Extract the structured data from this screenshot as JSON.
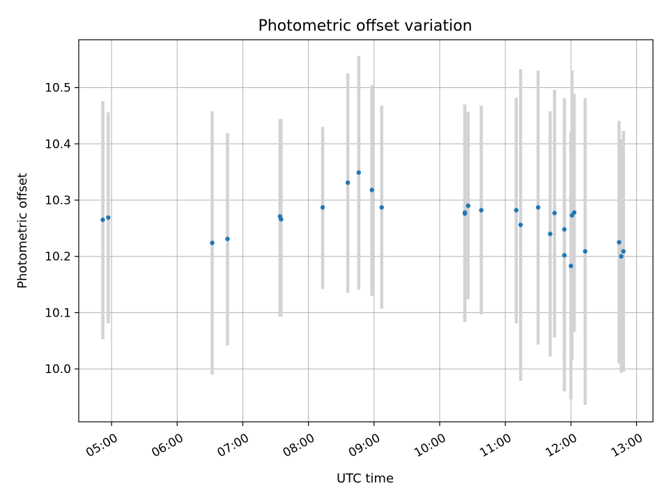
{
  "chart_data": {
    "type": "scatter",
    "title": "Photometric offset variation",
    "xlabel": "UTC time",
    "ylabel": "Photometric offset",
    "x_tick_labels": [
      "05:00",
      "06:00",
      "07:00",
      "08:00",
      "09:00",
      "10:00",
      "11:00",
      "12:00",
      "13:00"
    ],
    "y_tick_labels": [
      "10.0",
      "10.1",
      "10.2",
      "10.3",
      "10.4",
      "10.5"
    ],
    "x_ticks": [
      "05:00",
      "06:00",
      "07:00",
      "08:00",
      "09:00",
      "10:00",
      "11:00",
      "12:00",
      "13:00"
    ],
    "y_ticks": [
      10.0,
      10.1,
      10.2,
      10.3,
      10.4,
      10.5
    ],
    "xlim": [
      "04:30",
      "13:15"
    ],
    "ylim": [
      9.906,
      10.585
    ],
    "grid": true,
    "colors": {
      "point": "#1f77b4",
      "errorbar": "#d3d3d3",
      "grid": "#b0b0b0"
    },
    "points": [
      {
        "x": "04:52",
        "y": 10.265,
        "ylow": 10.053,
        "yhigh": 10.476
      },
      {
        "x": "04:57",
        "y": 10.269,
        "ylow": 10.081,
        "yhigh": 10.456
      },
      {
        "x": "06:32",
        "y": 10.224,
        "ylow": 9.99,
        "yhigh": 10.458
      },
      {
        "x": "06:46",
        "y": 10.231,
        "ylow": 10.042,
        "yhigh": 10.419
      },
      {
        "x": "07:34",
        "y": 10.271,
        "ylow": 10.093,
        "yhigh": 10.444
      },
      {
        "x": "07:35",
        "y": 10.266,
        "ylow": 10.093,
        "yhigh": 10.444
      },
      {
        "x": "08:13",
        "y": 10.287,
        "ylow": 10.142,
        "yhigh": 10.43
      },
      {
        "x": "08:36",
        "y": 10.331,
        "ylow": 10.135,
        "yhigh": 10.525
      },
      {
        "x": "08:46",
        "y": 10.349,
        "ylow": 10.141,
        "yhigh": 10.556
      },
      {
        "x": "08:58",
        "y": 10.318,
        "ylow": 10.13,
        "yhigh": 10.504
      },
      {
        "x": "09:07",
        "y": 10.287,
        "ylow": 10.107,
        "yhigh": 10.468
      },
      {
        "x": "10:23",
        "y": 10.276,
        "ylow": 10.083,
        "yhigh": 10.47
      },
      {
        "x": "10:23",
        "y": 10.278,
        "ylow": 10.083,
        "yhigh": 10.47
      },
      {
        "x": "10:26",
        "y": 10.29,
        "ylow": 10.124,
        "yhigh": 10.457
      },
      {
        "x": "10:38",
        "y": 10.282,
        "ylow": 10.097,
        "yhigh": 10.468
      },
      {
        "x": "11:10",
        "y": 10.282,
        "ylow": 10.081,
        "yhigh": 10.482
      },
      {
        "x": "11:14",
        "y": 10.256,
        "ylow": 9.979,
        "yhigh": 10.533
      },
      {
        "x": "11:30",
        "y": 10.287,
        "ylow": 10.043,
        "yhigh": 10.53
      },
      {
        "x": "11:41",
        "y": 10.24,
        "ylow": 10.022,
        "yhigh": 10.458
      },
      {
        "x": "11:45",
        "y": 10.277,
        "ylow": 10.056,
        "yhigh": 10.496
      },
      {
        "x": "11:54",
        "y": 10.248,
        "ylow": 10.016,
        "yhigh": 10.481
      },
      {
        "x": "11:54",
        "y": 10.202,
        "ylow": 9.96,
        "yhigh": 10.445
      },
      {
        "x": "12:00",
        "y": 10.183,
        "ylow": 9.946,
        "yhigh": 10.421
      },
      {
        "x": "12:01",
        "y": 10.273,
        "ylow": 10.016,
        "yhigh": 10.531
      },
      {
        "x": "12:03",
        "y": 10.278,
        "ylow": 10.066,
        "yhigh": 10.489
      },
      {
        "x": "12:13",
        "y": 10.209,
        "ylow": 9.936,
        "yhigh": 10.481
      },
      {
        "x": "12:44",
        "y": 10.225,
        "ylow": 10.01,
        "yhigh": 10.441
      },
      {
        "x": "12:46",
        "y": 10.2,
        "ylow": 9.993,
        "yhigh": 10.408
      },
      {
        "x": "12:48",
        "y": 10.209,
        "ylow": 9.995,
        "yhigh": 10.423
      }
    ]
  }
}
